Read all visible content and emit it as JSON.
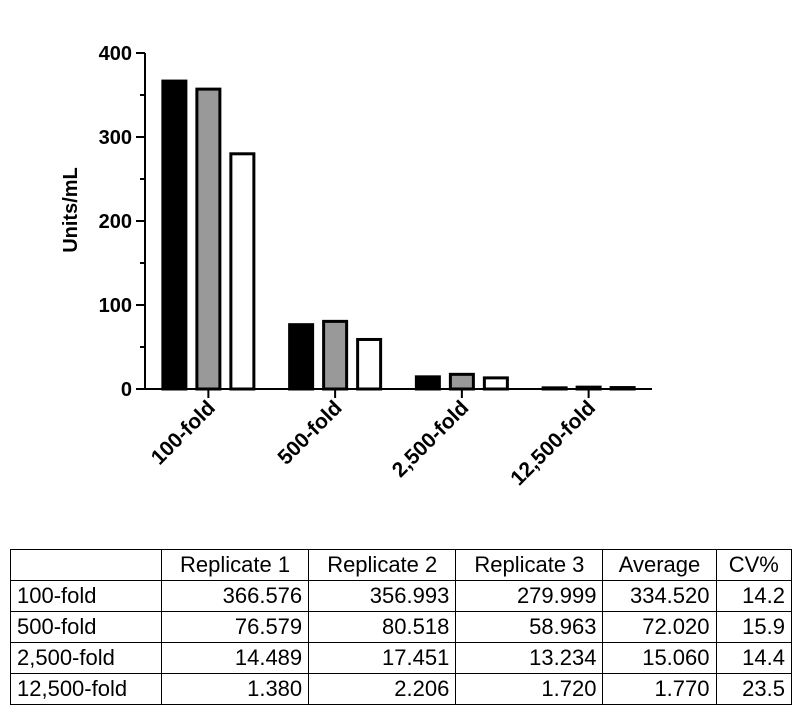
{
  "chart_data": {
    "type": "bar",
    "categories": [
      "100-fold",
      "500-fold",
      "2,500-fold",
      "12,500-fold"
    ],
    "series": [
      {
        "values": [
          366.576,
          76.579,
          14.489,
          1.38
        ],
        "color": "#000000"
      },
      {
        "values": [
          356.993,
          80.518,
          17.451,
          2.206
        ],
        "color": "#999999"
      },
      {
        "values": [
          279.999,
          58.963,
          13.234,
          1.72
        ],
        "color": "#ffffff"
      }
    ],
    "ylabel": "Units/mL",
    "ylim": [
      0,
      400
    ],
    "yticks": [
      "0",
      "100",
      "200",
      "300",
      "400"
    ],
    "grid": false
  },
  "table": {
    "columns": [
      "",
      "Replicate 1",
      "Replicate 2",
      "Replicate 3",
      "Average",
      "CV%"
    ],
    "rows": [
      [
        "100-fold",
        "366.576",
        "356.993",
        "279.999",
        "334.520",
        "14.2"
      ],
      [
        "500-fold",
        "76.579",
        "80.518",
        "58.963",
        "72.020",
        "15.9"
      ],
      [
        "2,500-fold",
        "14.489",
        "17.451",
        "13.234",
        "15.060",
        "14.4"
      ],
      [
        "12,500-fold",
        "1.380",
        "2.206",
        "1.720",
        "1.770",
        "23.5"
      ]
    ]
  }
}
